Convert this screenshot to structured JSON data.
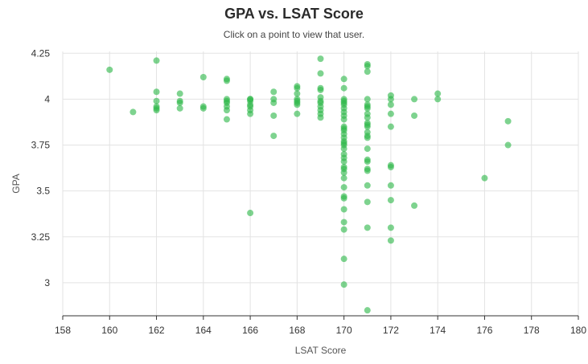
{
  "chart_data": {
    "type": "scatter",
    "title": "GPA vs. LSAT Score",
    "subtitle": "Click on a point to view that user.",
    "xlabel": "LSAT Score",
    "ylabel": "GPA",
    "xlim": [
      158,
      180
    ],
    "ylim": [
      2.82,
      4.26
    ],
    "xticks": [
      158,
      160,
      162,
      164,
      166,
      168,
      170,
      172,
      174,
      176,
      178,
      180
    ],
    "yticks": [
      3,
      3.25,
      3.5,
      3.75,
      4,
      4.25
    ],
    "ytick_labels": [
      "3",
      "3.25",
      "3.5",
      "3.75",
      "4",
      "4.25"
    ],
    "grid": true,
    "point_color": "#2eb84b",
    "points": [
      [
        160,
        4.16
      ],
      [
        161,
        3.93
      ],
      [
        162,
        4.21
      ],
      [
        162,
        4.04
      ],
      [
        162,
        3.99
      ],
      [
        162,
        3.96
      ],
      [
        162,
        3.95
      ],
      [
        162,
        3.94
      ],
      [
        163,
        4.03
      ],
      [
        163,
        3.99
      ],
      [
        163,
        3.98
      ],
      [
        163,
        3.95
      ],
      [
        164,
        4.12
      ],
      [
        164,
        3.96
      ],
      [
        164,
        3.95
      ],
      [
        165,
        4.11
      ],
      [
        165,
        4.1
      ],
      [
        165,
        4.0
      ],
      [
        165,
        3.99
      ],
      [
        165,
        3.98
      ],
      [
        165,
        3.96
      ],
      [
        165,
        3.94
      ],
      [
        165,
        3.89
      ],
      [
        166,
        4.0
      ],
      [
        166,
        4.0
      ],
      [
        166,
        3.99
      ],
      [
        166,
        3.97
      ],
      [
        166,
        3.96
      ],
      [
        166,
        3.94
      ],
      [
        166,
        3.92
      ],
      [
        166,
        3.38
      ],
      [
        167,
        4.04
      ],
      [
        167,
        4.0
      ],
      [
        167,
        3.98
      ],
      [
        167,
        3.91
      ],
      [
        167,
        3.8
      ],
      [
        168,
        4.07
      ],
      [
        168,
        4.06
      ],
      [
        168,
        4.03
      ],
      [
        168,
        4.0
      ],
      [
        168,
        3.99
      ],
      [
        168,
        3.98
      ],
      [
        168,
        3.97
      ],
      [
        168,
        3.92
      ],
      [
        169,
        4.22
      ],
      [
        169,
        4.14
      ],
      [
        169,
        4.06
      ],
      [
        169,
        4.05
      ],
      [
        169,
        4.01
      ],
      [
        169,
        3.99
      ],
      [
        169,
        3.98
      ],
      [
        169,
        3.96
      ],
      [
        169,
        3.94
      ],
      [
        169,
        3.92
      ],
      [
        169,
        3.9
      ],
      [
        170,
        4.11
      ],
      [
        170,
        4.06
      ],
      [
        170,
        4.0
      ],
      [
        170,
        3.99
      ],
      [
        170,
        3.98
      ],
      [
        170,
        3.97
      ],
      [
        170,
        3.95
      ],
      [
        170,
        3.93
      ],
      [
        170,
        3.91
      ],
      [
        170,
        3.89
      ],
      [
        170,
        3.85
      ],
      [
        170,
        3.84
      ],
      [
        170,
        3.83
      ],
      [
        170,
        3.81
      ],
      [
        170,
        3.79
      ],
      [
        170,
        3.77
      ],
      [
        170,
        3.76
      ],
      [
        170,
        3.75
      ],
      [
        170,
        3.73
      ],
      [
        170,
        3.7
      ],
      [
        170,
        3.68
      ],
      [
        170,
        3.66
      ],
      [
        170,
        3.63
      ],
      [
        170,
        3.62
      ],
      [
        170,
        3.6
      ],
      [
        170,
        3.57
      ],
      [
        170,
        3.52
      ],
      [
        170,
        3.47
      ],
      [
        170,
        3.46
      ],
      [
        170,
        3.4
      ],
      [
        170,
        3.33
      ],
      [
        170,
        3.29
      ],
      [
        170,
        3.13
      ],
      [
        170,
        2.99
      ],
      [
        171,
        4.19
      ],
      [
        171,
        4.18
      ],
      [
        171,
        4.15
      ],
      [
        171,
        4.0
      ],
      [
        171,
        3.97
      ],
      [
        171,
        3.96
      ],
      [
        171,
        3.95
      ],
      [
        171,
        3.92
      ],
      [
        171,
        3.9
      ],
      [
        171,
        3.87
      ],
      [
        171,
        3.86
      ],
      [
        171,
        3.85
      ],
      [
        171,
        3.82
      ],
      [
        171,
        3.8
      ],
      [
        171,
        3.79
      ],
      [
        171,
        3.73
      ],
      [
        171,
        3.67
      ],
      [
        171,
        3.66
      ],
      [
        171,
        3.62
      ],
      [
        171,
        3.61
      ],
      [
        171,
        3.53
      ],
      [
        171,
        3.44
      ],
      [
        171,
        3.3
      ],
      [
        171,
        2.85
      ],
      [
        172,
        4.02
      ],
      [
        172,
        4.0
      ],
      [
        172,
        3.97
      ],
      [
        172,
        3.92
      ],
      [
        172,
        3.85
      ],
      [
        172,
        3.64
      ],
      [
        172,
        3.63
      ],
      [
        172,
        3.53
      ],
      [
        172,
        3.45
      ],
      [
        172,
        3.3
      ],
      [
        172,
        3.23
      ],
      [
        173,
        4.0
      ],
      [
        173,
        3.91
      ],
      [
        173,
        3.42
      ],
      [
        174,
        4.03
      ],
      [
        174,
        4.0
      ],
      [
        176,
        3.57
      ],
      [
        177,
        3.88
      ],
      [
        177,
        3.75
      ]
    ]
  }
}
